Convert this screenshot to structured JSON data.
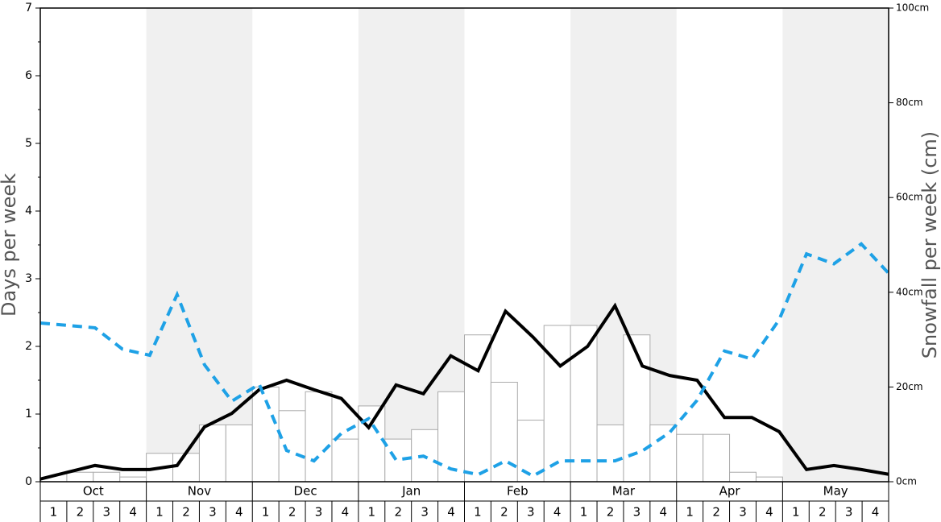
{
  "chart_data": {
    "type": "bar",
    "y_label": "Days per week",
    "y2_label": "Snowfall per week (cm)",
    "months": [
      "Oct",
      "Nov",
      "Dec",
      "Jan",
      "Feb",
      "Mar",
      "Apr",
      "May"
    ],
    "categories": [
      "1",
      "2",
      "3",
      "4",
      "1",
      "2",
      "3",
      "4",
      "1",
      "2",
      "3",
      "4",
      "1",
      "2",
      "3",
      "4",
      "1",
      "2",
      "3",
      "4",
      "1",
      "2",
      "3",
      "4",
      "1",
      "2",
      "3",
      "4",
      "1",
      "2",
      "3",
      "4"
    ],
    "ylim": [
      0,
      7
    ],
    "yticks": [
      0,
      1,
      2,
      3,
      4,
      5,
      6,
      7
    ],
    "y2lim": [
      0,
      100
    ],
    "y2ticks": [
      {
        "value": 0,
        "label": "0cm"
      },
      {
        "value": 20,
        "label": "20cm"
      },
      {
        "value": 40,
        "label": "40cm"
      },
      {
        "value": 60,
        "label": "60cm"
      },
      {
        "value": 80,
        "label": "80cm"
      },
      {
        "value": 100,
        "label": "100cm"
      }
    ],
    "series": [
      {
        "type": "bar",
        "color": "#ffffff",
        "values": [
          0,
          0.14,
          0.14,
          0.07,
          0.42,
          0.42,
          0.84,
          0.84,
          1.4,
          1.05,
          1.33,
          0.63,
          1.12,
          0.63,
          0.77,
          1.33,
          2.17,
          1.47,
          0.91,
          2.31,
          2.31,
          0.84,
          2.17,
          0.84,
          0.7,
          0.7,
          0.14,
          0.07,
          0,
          0,
          0,
          0
        ]
      },
      {
        "type": "line",
        "color": "#000000",
        "values": [
          0.04,
          0.14,
          0.24,
          0.18,
          0.18,
          0.24,
          0.81,
          1.01,
          1.36,
          1.5,
          1.36,
          1.23,
          0.8,
          1.43,
          1.3,
          1.86,
          1.64,
          2.52,
          2.14,
          1.71,
          2.0,
          2.6,
          1.71,
          1.57,
          1.5,
          0.95,
          0.95,
          0.74,
          0.18,
          0.24,
          0.18,
          0.11
        ]
      },
      {
        "type": "line",
        "axis": "y2",
        "dashed": true,
        "color": "#1ea1e6",
        "values": [
          33.5,
          33,
          32.5,
          28,
          26.7,
          39.5,
          24.7,
          17,
          20.6,
          6.6,
          4.4,
          10.2,
          13.3,
          4.6,
          5.4,
          2.7,
          1.5,
          4.4,
          1.2,
          4.4,
          4.4,
          4.4,
          6.5,
          10.4,
          17.2,
          27.6,
          25.9,
          34.2,
          48.1,
          46,
          50.2,
          44
        ]
      }
    ]
  }
}
